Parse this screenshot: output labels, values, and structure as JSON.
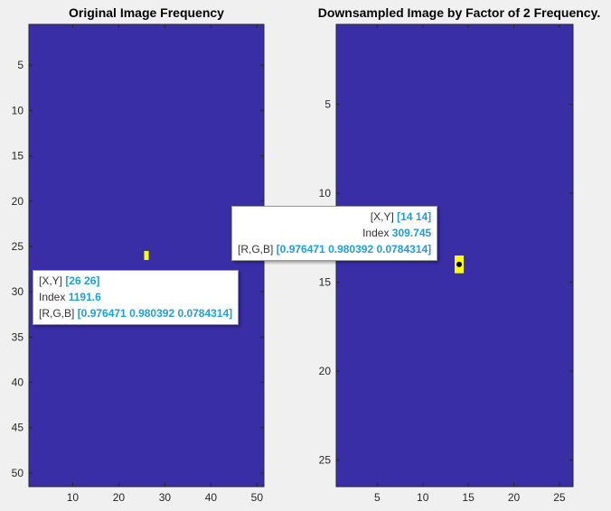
{
  "colors": {
    "background": "#3a2ea6",
    "hot": "#f9fa14",
    "axis": "#262626",
    "tip_value": "#1e9fd6"
  },
  "chart_data": [
    {
      "type": "heatmap",
      "title": "Original Image Frequency",
      "xlabel": "",
      "ylabel": "",
      "xlim": [
        0.5,
        51.5
      ],
      "ylim": [
        0.5,
        51.5
      ],
      "y_reversed": true,
      "xticks": [
        10,
        20,
        30,
        40,
        50
      ],
      "yticks": [
        5,
        10,
        15,
        20,
        25,
        30,
        35,
        40,
        45,
        50
      ],
      "colormap": "parula",
      "hot_cells": [
        {
          "x": 26,
          "y": 26
        }
      ],
      "datatip": {
        "xy_label": "[X,Y]",
        "xy_value": "[26 26]",
        "index_label": "Index",
        "index_value": "1191.6",
        "rgb_label": "[R,G,B]",
        "rgb_value": "[0.976471 0.980392 0.0784314]"
      }
    },
    {
      "type": "heatmap",
      "title": "Downsampled Image by Factor of 2 Frequency.",
      "xlabel": "",
      "ylabel": "",
      "xlim": [
        0.5,
        26.5
      ],
      "ylim": [
        0.5,
        26.5
      ],
      "y_reversed": true,
      "xticks": [
        5,
        10,
        15,
        20,
        25
      ],
      "yticks": [
        5,
        10,
        15,
        20,
        25
      ],
      "colormap": "parula",
      "hot_cells": [
        {
          "x": 14,
          "y": 14
        }
      ],
      "datatip": {
        "xy_label": "[X,Y]",
        "xy_value": "[14 14]",
        "index_label": "Index",
        "index_value": "309.745",
        "rgb_label": "[R,G,B]",
        "rgb_value": "[0.976471 0.980392 0.0784314]"
      }
    }
  ]
}
